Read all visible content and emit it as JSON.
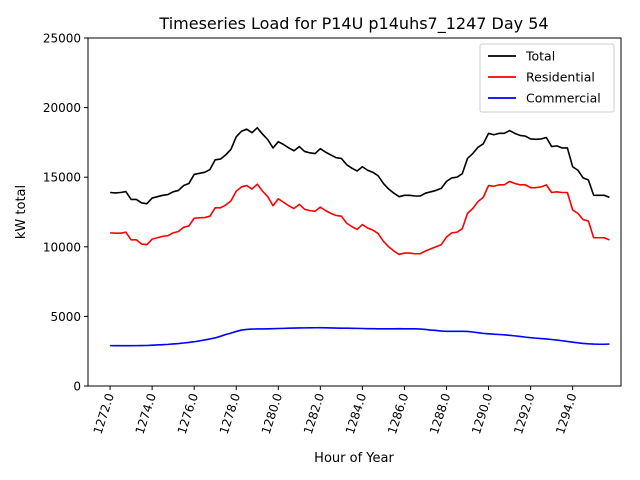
{
  "chart_data": {
    "type": "line",
    "title": "Timeseries Load for P14U p14uhs7_1247  Day 54",
    "xlabel": "Hour of Year",
    "ylabel": "kW total",
    "xlim": [
      1270.95,
      1296.3
    ],
    "ylim": [
      0,
      25000
    ],
    "x_ticks": [
      1272,
      1274,
      1276,
      1278,
      1280,
      1282,
      1284,
      1286,
      1288,
      1290,
      1292,
      1294
    ],
    "x_tick_labels": [
      "1272.0",
      "1274.0",
      "1276.0",
      "1278.0",
      "1280.0",
      "1282.0",
      "1284.0",
      "1286.0",
      "1288.0",
      "1290.0",
      "1292.0",
      "1294.0"
    ],
    "y_ticks": [
      0,
      5000,
      10000,
      15000,
      20000,
      25000
    ],
    "y_tick_labels": [
      "0",
      "5000",
      "10000",
      "15000",
      "20000",
      "25000"
    ],
    "x_start": 1272,
    "x_step": 0.25,
    "legend_position": "top-right",
    "series": [
      {
        "name": "Total",
        "color": "#000000",
        "values": [
          13900,
          13870,
          13900,
          13970,
          13400,
          13400,
          13150,
          13100,
          13500,
          13600,
          13700,
          13750,
          13950,
          14050,
          14400,
          14550,
          15200,
          15280,
          15350,
          15550,
          16250,
          16300,
          16600,
          17000,
          17900,
          18300,
          18450,
          18200,
          18550,
          18100,
          17700,
          17100,
          17550,
          17350,
          17100,
          16900,
          17200,
          16850,
          16750,
          16700,
          17050,
          16800,
          16600,
          16400,
          16350,
          15900,
          15650,
          15450,
          15750,
          15500,
          15350,
          15100,
          14550,
          14150,
          13850,
          13600,
          13700,
          13700,
          13650,
          13650,
          13850,
          13950,
          14050,
          14200,
          14700,
          14950,
          15000,
          15250,
          16350,
          16700,
          17150,
          17400,
          18150,
          18050,
          18150,
          18150,
          18350,
          18150,
          18000,
          17950,
          17750,
          17720,
          17750,
          17850,
          17200,
          17250,
          17100,
          17100,
          15750,
          15500,
          14950,
          14800,
          13700,
          13700,
          13700,
          13550
        ]
      },
      {
        "name": "Residential",
        "color": "#ff0000",
        "values": [
          11000,
          10980,
          10980,
          11050,
          10500,
          10500,
          10200,
          10150,
          10550,
          10650,
          10750,
          10800,
          11000,
          11100,
          11400,
          11500,
          12050,
          12080,
          12100,
          12200,
          12800,
          12800,
          13000,
          13300,
          14000,
          14300,
          14400,
          14150,
          14500,
          14000,
          13600,
          12950,
          13450,
          13200,
          12950,
          12750,
          13050,
          12700,
          12600,
          12550,
          12850,
          12600,
          12400,
          12250,
          12200,
          11700,
          11450,
          11250,
          11600,
          11350,
          11200,
          10950,
          10400,
          10000,
          9700,
          9450,
          9550,
          9550,
          9500,
          9500,
          9700,
          9850,
          10000,
          10150,
          10700,
          11000,
          11050,
          11300,
          12400,
          12750,
          13250,
          13550,
          14400,
          14350,
          14450,
          14450,
          14700,
          14550,
          14450,
          14450,
          14250,
          14250,
          14300,
          14450,
          13900,
          13950,
          13900,
          13900,
          12650,
          12400,
          11950,
          11850,
          10650,
          10650,
          10650,
          10500
        ]
      },
      {
        "name": "Commercial",
        "color": "#0000ff",
        "values": [
          2900,
          2895,
          2895,
          2895,
          2895,
          2900,
          2905,
          2910,
          2930,
          2950,
          2970,
          2990,
          3020,
          3050,
          3090,
          3130,
          3180,
          3240,
          3310,
          3380,
          3460,
          3570,
          3700,
          3800,
          3920,
          4020,
          4060,
          4090,
          4100,
          4100,
          4110,
          4120,
          4130,
          4140,
          4150,
          4160,
          4170,
          4175,
          4180,
          4185,
          4190,
          4180,
          4170,
          4160,
          4155,
          4150,
          4145,
          4140,
          4130,
          4120,
          4115,
          4110,
          4110,
          4110,
          4110,
          4115,
          4110,
          4110,
          4105,
          4090,
          4060,
          4020,
          3990,
          3950,
          3930,
          3930,
          3930,
          3930,
          3920,
          3880,
          3830,
          3780,
          3750,
          3720,
          3700,
          3680,
          3640,
          3600,
          3560,
          3510,
          3470,
          3440,
          3410,
          3380,
          3340,
          3300,
          3250,
          3200,
          3150,
          3100,
          3060,
          3030,
          3010,
          3000,
          3000,
          3010
        ]
      }
    ]
  }
}
